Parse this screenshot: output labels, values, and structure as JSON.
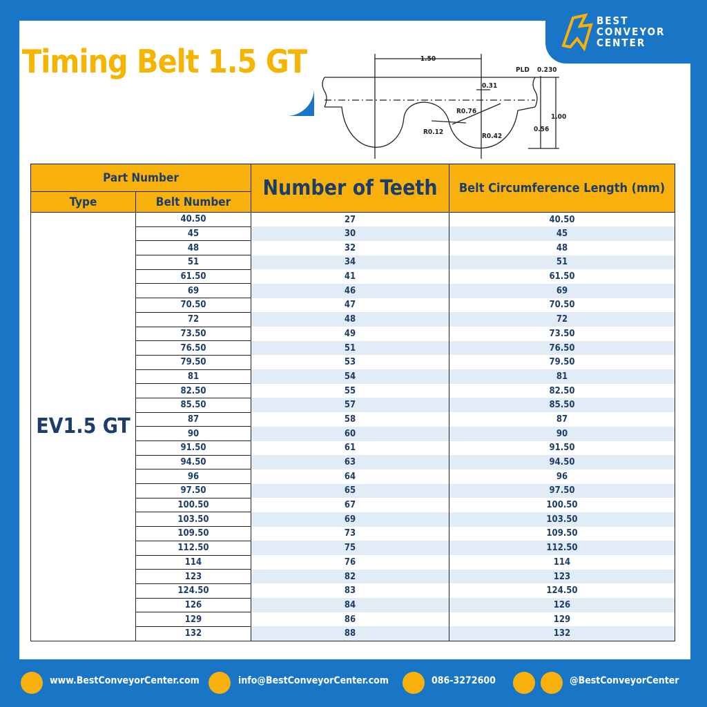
{
  "header": {
    "title": "Timing Belt 1.5 GT",
    "logo": [
      "BEST",
      "CONVEYOR",
      "CENTER"
    ]
  },
  "diagram": {
    "labels": [
      "1.50",
      "PLD",
      "0.230",
      "0.31",
      "R0.76",
      "R0.12",
      "R0.42",
      "1.00",
      "0.56"
    ]
  },
  "table": {
    "headers": {
      "part_number": "Part Number",
      "type": "Type",
      "belt_number": "Belt Number",
      "teeth": "Number of Teeth",
      "length": "Belt Circumference Length (mm)"
    },
    "type": "EV1.5 GT",
    "rows": [
      [
        "40.50",
        "27",
        "40.50"
      ],
      [
        "45",
        "30",
        "45"
      ],
      [
        "48",
        "32",
        "48"
      ],
      [
        "51",
        "34",
        "51"
      ],
      [
        "61.50",
        "41",
        "61.50"
      ],
      [
        "69",
        "46",
        "69"
      ],
      [
        "70.50",
        "47",
        "70.50"
      ],
      [
        "72",
        "48",
        "72"
      ],
      [
        "73.50",
        "49",
        "73.50"
      ],
      [
        "76.50",
        "51",
        "76.50"
      ],
      [
        "79.50",
        "53",
        "79.50"
      ],
      [
        "81",
        "54",
        "81"
      ],
      [
        "82.50",
        "55",
        "82.50"
      ],
      [
        "85.50",
        "57",
        "85.50"
      ],
      [
        "87",
        "58",
        "87"
      ],
      [
        "90",
        "60",
        "90"
      ],
      [
        "91.50",
        "61",
        "91.50"
      ],
      [
        "94.50",
        "63",
        "94.50"
      ],
      [
        "96",
        "64",
        "96"
      ],
      [
        "97.50",
        "65",
        "97.50"
      ],
      [
        "100.50",
        "67",
        "100.50"
      ],
      [
        "103.50",
        "69",
        "103.50"
      ],
      [
        "109.50",
        "73",
        "109.50"
      ],
      [
        "112.50",
        "75",
        "112.50"
      ],
      [
        "114",
        "76",
        "114"
      ],
      [
        "123",
        "82",
        "123"
      ],
      [
        "124.50",
        "83",
        "124.50"
      ],
      [
        "126",
        "84",
        "126"
      ],
      [
        "129",
        "86",
        "129"
      ],
      [
        "132",
        "88",
        "132"
      ]
    ]
  },
  "footer": {
    "website": "www.BestConveyorCenter.com",
    "email": "info@BestConveyorCenter.com",
    "phone": "086-3272600",
    "social": "@BestConveyorCenter"
  }
}
